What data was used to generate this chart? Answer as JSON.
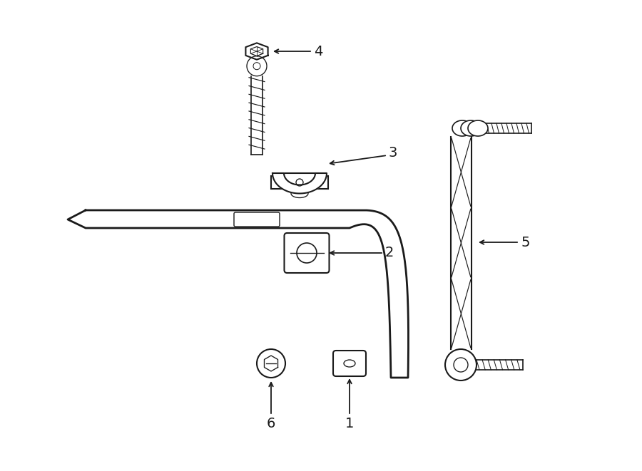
{
  "background_color": "#ffffff",
  "line_color": "#1a1a1a",
  "line_width": 1.5,
  "fig_width": 9.0,
  "fig_height": 6.61,
  "dpi": 100
}
